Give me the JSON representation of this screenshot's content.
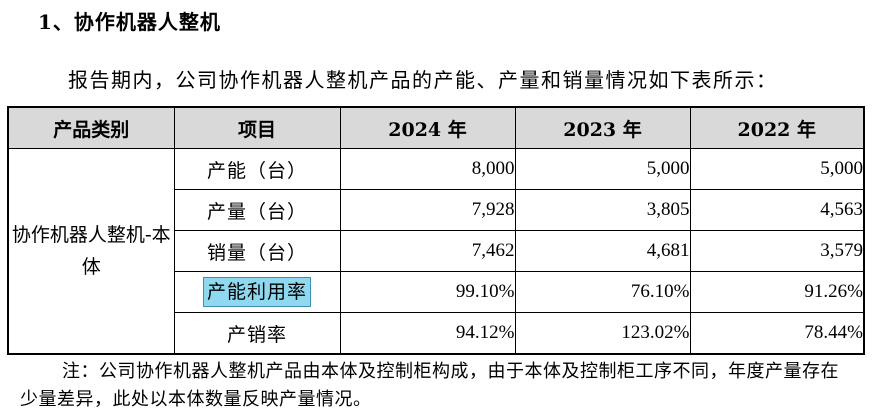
{
  "heading": "1、协作机器人整机",
  "intro": "报告期内，公司协作机器人整机产品的产能、产量和销量情况如下表所示：",
  "table": {
    "headers": [
      "产品类别",
      "项目",
      "2024 年",
      "2023 年",
      "2022 年"
    ],
    "category": "协作机器人整机-本体",
    "rows": [
      {
        "item": "产能（台）",
        "values": [
          "8,000",
          "5,000",
          "5,000"
        ]
      },
      {
        "item": "产量（台）",
        "values": [
          "7,928",
          "3,805",
          "4,563"
        ]
      },
      {
        "item": "销量（台）",
        "values": [
          "7,462",
          "4,681",
          "3,579"
        ]
      },
      {
        "item": "产能利用率",
        "values": [
          "99.10%",
          "76.10%",
          "91.26%"
        ]
      },
      {
        "item": "产销率",
        "values": [
          "94.12%",
          "123.02%",
          "78.44%"
        ]
      }
    ]
  },
  "note": "注：公司协作机器人整机产品由本体及控制柜构成，由于本体及控制柜工序不同，年度产量存在少量差异，此处以本体数量反映产量情况。"
}
